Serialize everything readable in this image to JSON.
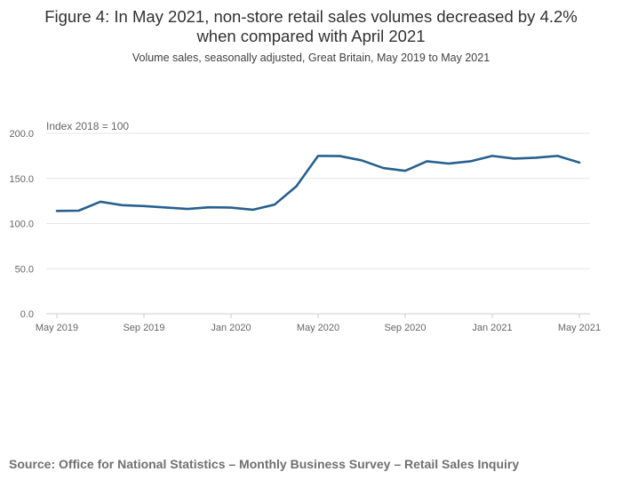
{
  "chart_data": {
    "type": "line",
    "title_line1": "Figure 4: In May 2021, non-store retail sales volumes decreased by 4.2%",
    "title_line2": "when compared with April 2021",
    "subtitle": "Volume sales, seasonally adjusted, Great Britain, May 2019 to May 2021",
    "ylabel": "Index 2018 = 100",
    "xlabel": "",
    "ylim": [
      0,
      200
    ],
    "yticks": [
      "200.0",
      "150.0",
      "100.0",
      "50.0",
      "0.0"
    ],
    "xtick_labels": [
      "May 2019",
      "Sep 2019",
      "Jan 2020",
      "May 2020",
      "Sep 2020",
      "Jan 2021",
      "May 2021"
    ],
    "xtick_index": [
      0,
      4,
      8,
      12,
      16,
      20,
      24
    ],
    "colors": {
      "line": "#27608e"
    },
    "series": [
      {
        "name": "Non-store retail",
        "x": [
          "May 2019",
          "Jun 2019",
          "Jul 2019",
          "Aug 2019",
          "Sep 2019",
          "Oct 2019",
          "Nov 2019",
          "Dec 2019",
          "Jan 2020",
          "Feb 2020",
          "Mar 2020",
          "Apr 2020",
          "May 2020",
          "Jun 2020",
          "Jul 2020",
          "Aug 2020",
          "Sep 2020",
          "Oct 2020",
          "Nov 2020",
          "Dec 2020",
          "Jan 2021",
          "Feb 2021",
          "Mar 2021",
          "Apr 2021",
          "May 2021"
        ],
        "values": [
          114,
          114.3,
          124.2,
          120.4,
          119.4,
          117.8,
          116.2,
          118,
          117.7,
          115.3,
          121,
          141.3,
          175,
          174.8,
          170,
          161.5,
          158.4,
          169,
          166.5,
          169,
          175,
          172,
          173,
          175,
          167.6
        ]
      }
    ]
  },
  "footer": {
    "source": "Source: Office for National Statistics – Monthly Business Survey – Retail Sales Inquiry"
  }
}
